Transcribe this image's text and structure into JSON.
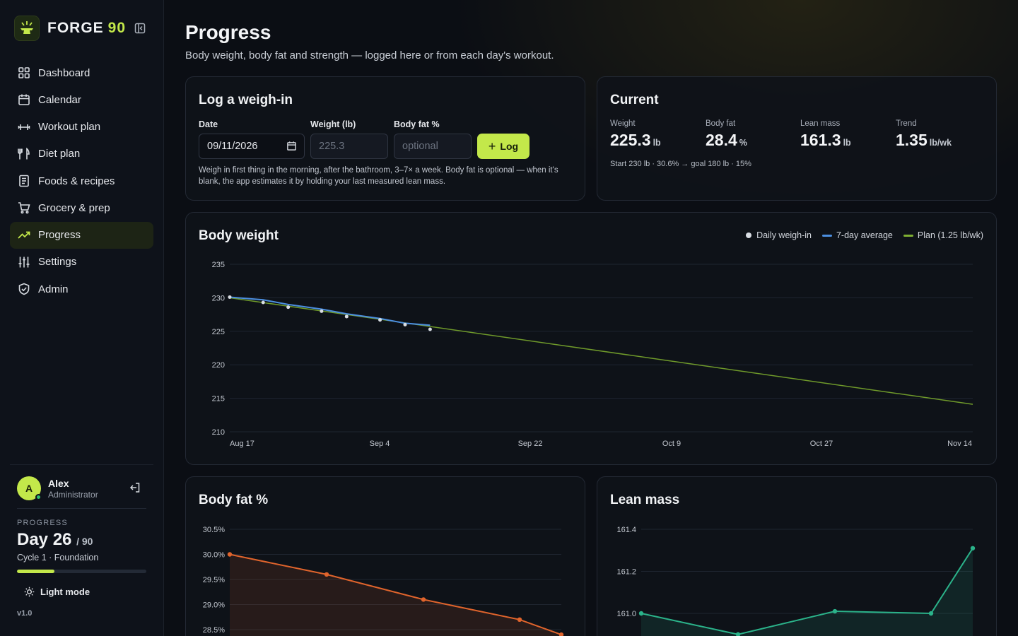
{
  "app": {
    "brand_name": "FORGE",
    "brand_number": "90",
    "accent": "#c3e84a"
  },
  "sidebar": {
    "items": [
      {
        "label": "Dashboard",
        "icon": "grid-icon"
      },
      {
        "label": "Calendar",
        "icon": "calendar-icon"
      },
      {
        "label": "Workout plan",
        "icon": "dumbbell-icon"
      },
      {
        "label": "Diet plan",
        "icon": "utensils-icon"
      },
      {
        "label": "Foods & recipes",
        "icon": "book-icon"
      },
      {
        "label": "Grocery & prep",
        "icon": "cart-icon"
      },
      {
        "label": "Progress",
        "icon": "trending-up-icon",
        "active": true
      },
      {
        "label": "Settings",
        "icon": "sliders-icon"
      },
      {
        "label": "Admin",
        "icon": "shield-icon"
      }
    ],
    "user": {
      "initial": "A",
      "name": "Alex",
      "role": "Administrator"
    },
    "progress": {
      "label": "PROGRESS",
      "day": "Day 26",
      "of": "/ 90",
      "cycle": "Cycle 1 · Foundation",
      "fraction": 0.289
    },
    "theme_toggle": "Light mode",
    "version": "v1.0"
  },
  "page": {
    "title": "Progress",
    "subtitle": "Body weight, body fat and strength — logged here or from each day's workout."
  },
  "weigh_in": {
    "title": "Log a weigh-in",
    "date_label": "Date",
    "date_value": "09/11/2026",
    "weight_label": "Weight (lb)",
    "weight_placeholder": "225.3",
    "bodyfat_label": "Body fat %",
    "bodyfat_placeholder": "optional",
    "button": "Log",
    "help": "Weigh in first thing in the morning, after the bathroom, 3–7× a week. Body fat is optional — when it's blank, the app estimates it by holding your last measured lean mass."
  },
  "current": {
    "title": "Current",
    "stats": [
      {
        "label": "Weight",
        "value": "225.3",
        "unit": "lb"
      },
      {
        "label": "Body fat",
        "value": "28.4",
        "unit": "%"
      },
      {
        "label": "Lean mass",
        "value": "161.3",
        "unit": "lb"
      },
      {
        "label": "Trend",
        "value": "1.35",
        "unit": "lb/wk"
      }
    ],
    "summary": "Start 230 lb · 30.6% → goal 180 lb · 15%"
  },
  "chart_data": [
    {
      "type": "line",
      "title": "Body weight",
      "legend": [
        "Daily weigh-in",
        "7-day average",
        "Plan (1.25 lb/wk)"
      ],
      "legend_position": "top-right",
      "x_ticks": [
        "Aug 17",
        "Sep 4",
        "Sep 22",
        "Oct 9",
        "Oct 27",
        "Nov 14"
      ],
      "y_ticks": [
        "235",
        "230",
        "225",
        "220",
        "215",
        "210"
      ],
      "ylim": [
        210,
        235
      ],
      "x_domain": [
        "2026-08-17",
        "2026-11-14"
      ],
      "grid": true,
      "colors": {
        "daily": "#d9dde3",
        "avg": "#4c8fe0",
        "plan": "#6f9a2a"
      },
      "series": [
        {
          "name": "Daily weigh-in",
          "points": [
            [
              "2026-08-17",
              230.1
            ],
            [
              "2026-08-21",
              229.3
            ],
            [
              "2026-08-24",
              228.6
            ],
            [
              "2026-08-28",
              228.0
            ],
            [
              "2026-08-31",
              227.2
            ],
            [
              "2026-09-04",
              226.7
            ],
            [
              "2026-09-07",
              226.0
            ],
            [
              "2026-09-10",
              225.3
            ]
          ]
        },
        {
          "name": "7-day average",
          "points": [
            [
              "2026-08-17",
              230.1
            ],
            [
              "2026-08-21",
              229.7
            ],
            [
              "2026-08-24",
              229.0
            ],
            [
              "2026-08-28",
              228.3
            ],
            [
              "2026-08-31",
              227.6
            ],
            [
              "2026-09-04",
              226.9
            ],
            [
              "2026-09-07",
              226.2
            ],
            [
              "2026-09-10",
              225.9
            ]
          ]
        },
        {
          "name": "Plan (1.25 lb/wk)",
          "points": [
            [
              "2026-08-17",
              230.0
            ],
            [
              "2026-11-14",
              214.1
            ]
          ]
        }
      ]
    },
    {
      "type": "area",
      "title": "Body fat %",
      "y_ticks": [
        "30.5%",
        "30.0%",
        "29.5%",
        "29.0%",
        "28.5%"
      ],
      "ylim": [
        28.4,
        30.5
      ],
      "color": "#e0642c",
      "series": [
        {
          "values": [
            30.0,
            29.6,
            29.1,
            28.7,
            28.4
          ]
        }
      ]
    },
    {
      "type": "area",
      "title": "Lean mass",
      "y_ticks": [
        "161.4",
        "161.2",
        "161.0"
      ],
      "ylim": [
        160.9,
        161.4
      ],
      "color": "#2bb38a",
      "series": [
        {
          "values": [
            161.0,
            160.9,
            161.01,
            161.0,
            161.31
          ]
        }
      ]
    }
  ]
}
